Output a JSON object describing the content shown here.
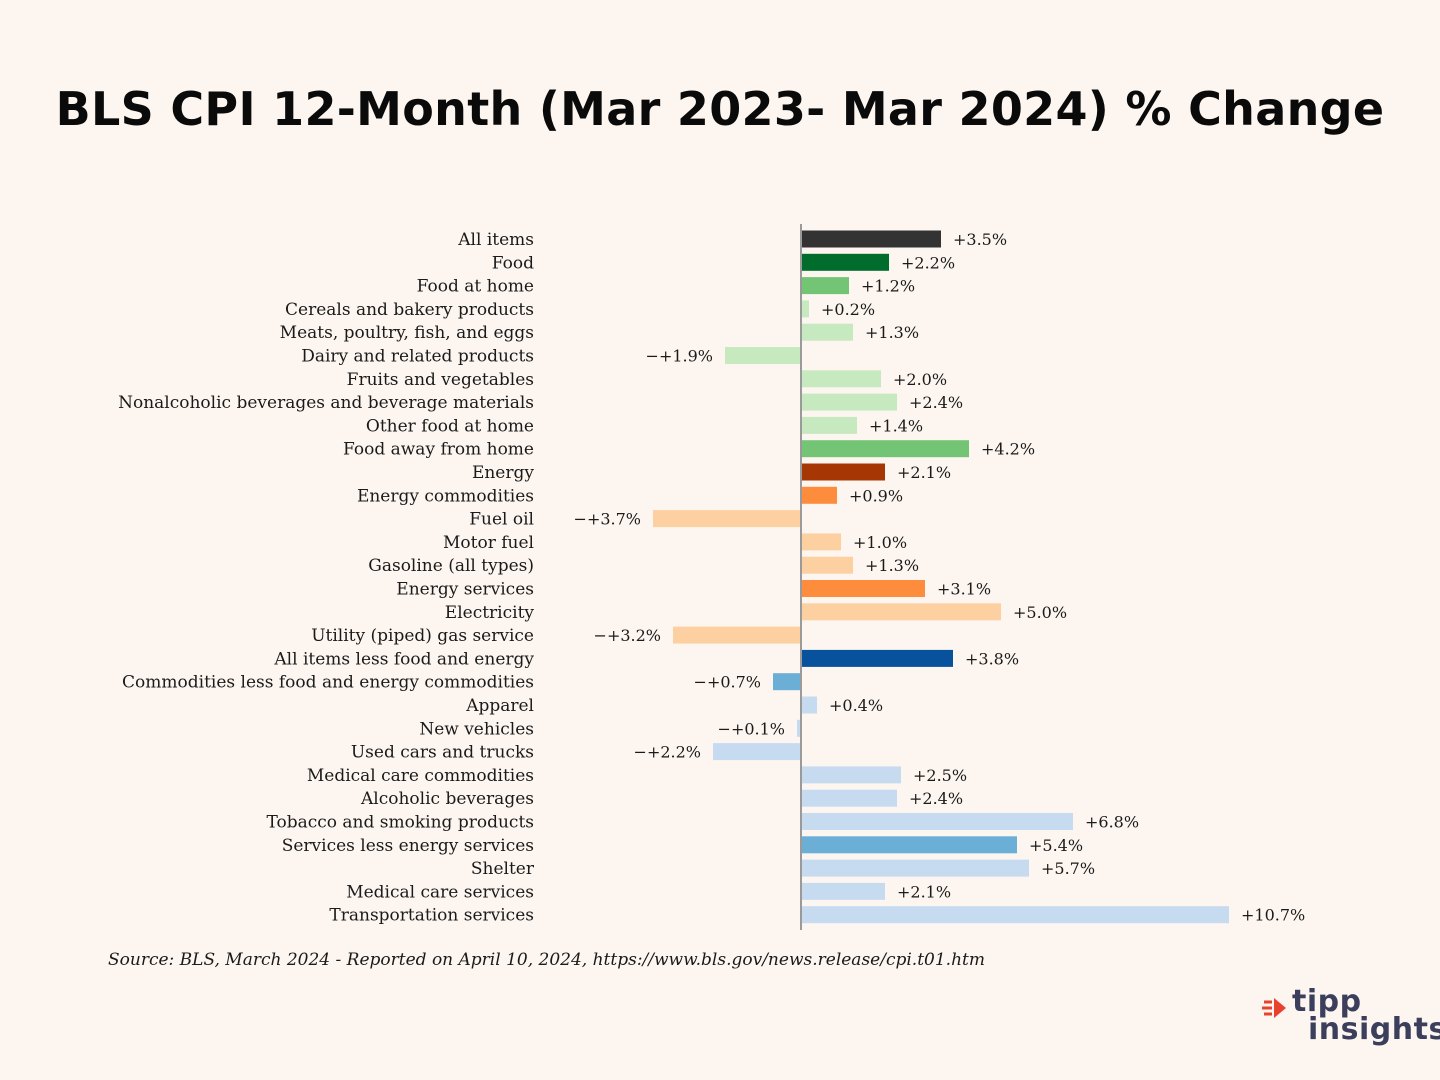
{
  "chart_data": {
    "type": "bar",
    "orientation": "horizontal",
    "title": "BLS CPI 12-Month (Mar 2023- Mar 2024) % Change",
    "xlabel": "",
    "ylabel": "",
    "categories": [
      "All items",
      "Food",
      "Food at home",
      "Cereals and bakery products",
      "Meats, poultry, fish, and eggs",
      "Dairy and related products",
      "Fruits and vegetables",
      "Nonalcoholic beverages and beverage materials",
      "Other food at home",
      "Food away from home",
      "Energy",
      "Energy commodities",
      "Fuel oil",
      "Motor fuel",
      "Gasoline (all types)",
      "Energy services",
      "Electricity",
      "Utility (piped) gas service",
      "All items less food and energy",
      "Commodities less food and energy commodities",
      "Apparel",
      "New vehicles",
      "Used cars and trucks",
      "Medical care commodities",
      "Alcoholic beverages",
      "Tobacco and smoking products",
      "Services less energy services",
      "Shelter",
      "Medical care services",
      "Transportation services"
    ],
    "values": [
      3.5,
      2.2,
      1.2,
      0.2,
      1.3,
      -1.9,
      2.0,
      2.4,
      1.4,
      4.2,
      2.1,
      0.9,
      -3.7,
      1.0,
      1.3,
      3.1,
      5.0,
      -3.2,
      3.8,
      -0.7,
      0.4,
      -0.1,
      -2.2,
      2.5,
      2.4,
      6.8,
      5.4,
      5.7,
      2.1,
      10.7
    ],
    "value_labels": [
      "+3.5%",
      "+2.2%",
      "+1.2%",
      "+0.2%",
      "+1.3%",
      "−+1.9%",
      "+2.0%",
      "+2.4%",
      "+1.4%",
      "+4.2%",
      "+2.1%",
      "+0.9%",
      "−+3.7%",
      "+1.0%",
      "+1.3%",
      "+3.1%",
      "+5.0%",
      "−+3.2%",
      "+3.8%",
      "−+0.7%",
      "+0.4%",
      "−+0.1%",
      "−+2.2%",
      "+2.5%",
      "+2.4%",
      "+6.8%",
      "+5.4%",
      "+5.7%",
      "+2.1%",
      "+10.7%"
    ],
    "colors": [
      "#333333",
      "#006d2c",
      "#74c476",
      "#c7e9c0",
      "#c7e9c0",
      "#c7e9c0",
      "#c7e9c0",
      "#c7e9c0",
      "#c7e9c0",
      "#74c476",
      "#a63603",
      "#fd8d3c",
      "#fdd0a2",
      "#fdd0a2",
      "#fdd0a2",
      "#fd8d3c",
      "#fdd0a2",
      "#fdd0a2",
      "#08519c",
      "#6baed6",
      "#c6dbef",
      "#c6dbef",
      "#c6dbef",
      "#c6dbef",
      "#c6dbef",
      "#c6dbef",
      "#6baed6",
      "#c6dbef",
      "#c6dbef",
      "#c6dbef"
    ],
    "xlim": [
      -6.0,
      12.6
    ],
    "grid": false,
    "legend": "none"
  },
  "source": "Source:  BLS, March 2024 - Reported on April 10, 2024, https://www.bls.gov/news.release/cpi.t01.htm",
  "logo": {
    "line1": "tipp",
    "line2": "insights",
    "accent_color": "#e8422f",
    "text_color": "#3b3f5c"
  }
}
